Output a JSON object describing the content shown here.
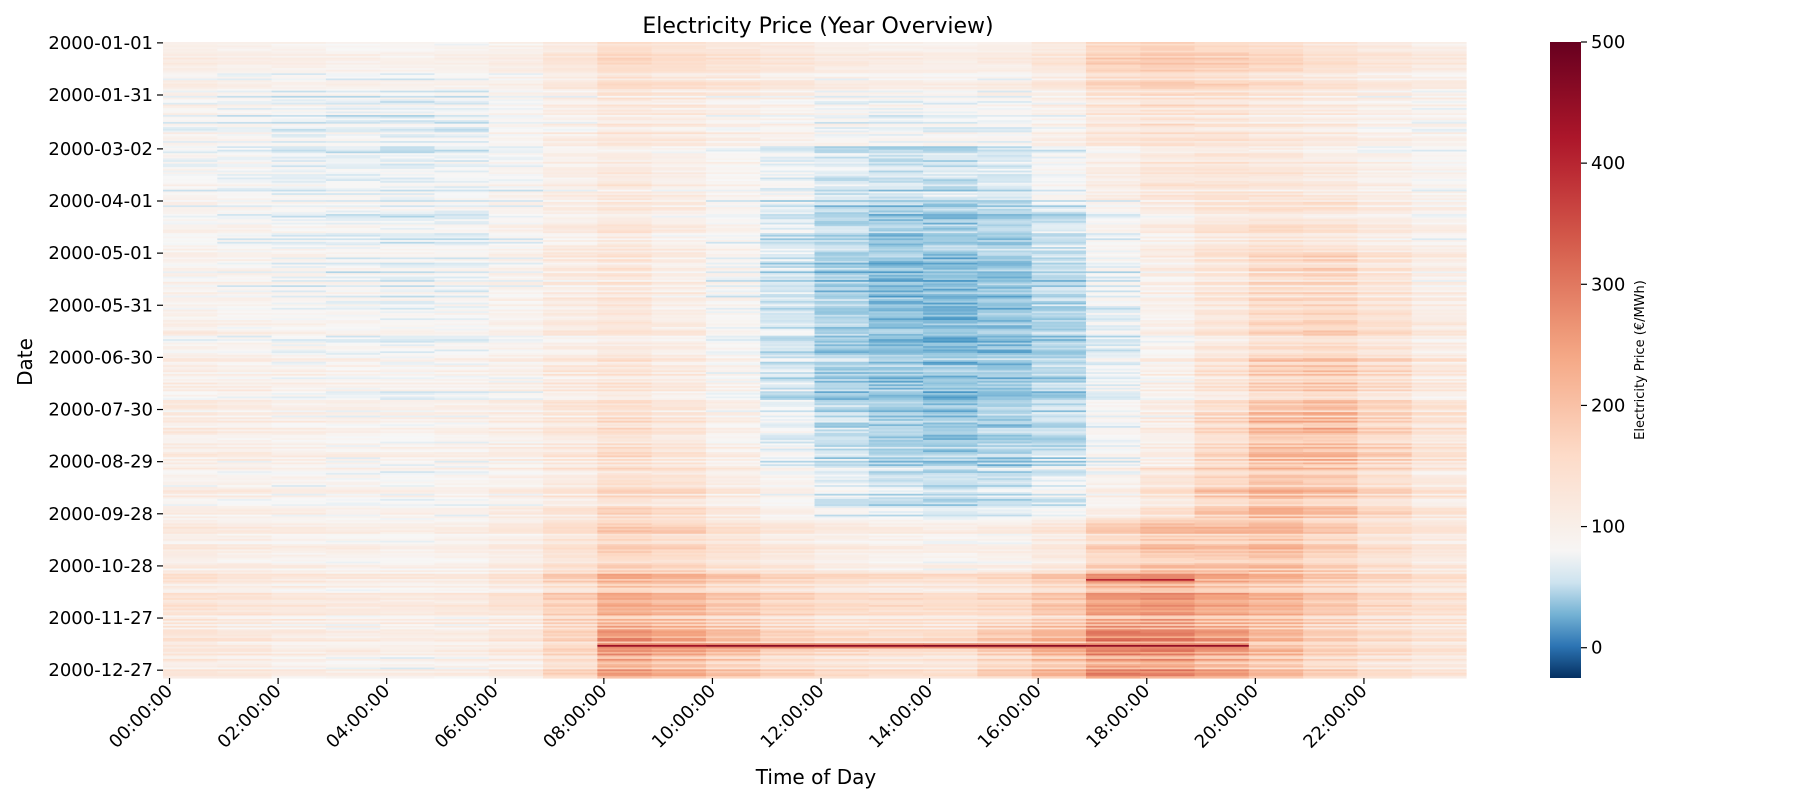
{
  "chart_data": {
    "type": "heatmap",
    "title": "Electricity Price (Year Overview)",
    "xlabel": "Time of Day",
    "ylabel": "Date",
    "colorbar_label": "Electricity Price (€/MWh)",
    "colorbar_ticks": [
      0,
      100,
      200,
      300,
      400,
      500
    ],
    "colorbar_range": [
      -25,
      500
    ],
    "colormap": "RdBu_r",
    "colormap_center": 75,
    "x_categories": [
      "00:00:00",
      "01:00:00",
      "02:00:00",
      "03:00:00",
      "04:00:00",
      "05:00:00",
      "06:00:00",
      "07:00:00",
      "08:00:00",
      "09:00:00",
      "10:00:00",
      "11:00:00",
      "12:00:00",
      "13:00:00",
      "14:00:00",
      "15:00:00",
      "16:00:00",
      "17:00:00",
      "18:00:00",
      "19:00:00",
      "20:00:00",
      "21:00:00",
      "22:00:00",
      "23:00:00"
    ],
    "x_tick_labels": [
      "00:00:00",
      "02:00:00",
      "04:00:00",
      "06:00:00",
      "08:00:00",
      "10:00:00",
      "12:00:00",
      "14:00:00",
      "16:00:00",
      "18:00:00",
      "20:00:00",
      "22:00:00"
    ],
    "y_tick_labels": [
      "2000-01-01",
      "2000-01-31",
      "2000-03-02",
      "2000-04-01",
      "2000-05-01",
      "2000-05-31",
      "2000-06-30",
      "2000-07-30",
      "2000-08-29",
      "2000-09-28",
      "2000-10-28",
      "2000-11-27",
      "2000-12-27"
    ],
    "y_range": [
      "2000-01-01",
      "2000-12-31"
    ],
    "approx_monthly_hourly_profile": [
      {
        "month": "2000-01",
        "values": [
          95,
          90,
          85,
          82,
          80,
          82,
          90,
          110,
          140,
          130,
          120,
          110,
          100,
          95,
          92,
          95,
          110,
          150,
          160,
          150,
          140,
          125,
          110,
          100
        ]
      },
      {
        "month": "2000-02",
        "values": [
          85,
          80,
          75,
          72,
          70,
          72,
          82,
          100,
          120,
          112,
          100,
          90,
          82,
          78,
          76,
          80,
          95,
          125,
          135,
          130,
          120,
          110,
          98,
          90
        ]
      },
      {
        "month": "2000-03",
        "values": [
          80,
          75,
          70,
          68,
          66,
          70,
          80,
          98,
          112,
          100,
          85,
          70,
          60,
          55,
          55,
          60,
          75,
          100,
          120,
          125,
          120,
          110,
          95,
          85
        ]
      },
      {
        "month": "2000-04",
        "values": [
          82,
          78,
          72,
          70,
          68,
          72,
          82,
          100,
          115,
          100,
          80,
          60,
          45,
          40,
          38,
          42,
          55,
          80,
          100,
          120,
          130,
          125,
          105,
          90
        ]
      },
      {
        "month": "2000-05",
        "values": [
          88,
          82,
          78,
          75,
          72,
          75,
          85,
          105,
          118,
          100,
          78,
          55,
          40,
          32,
          30,
          35,
          48,
          70,
          95,
          120,
          145,
          150,
          125,
          100
        ]
      },
      {
        "month": "2000-06",
        "values": [
          95,
          90,
          85,
          80,
          78,
          80,
          90,
          108,
          120,
          105,
          80,
          58,
          42,
          35,
          32,
          35,
          45,
          68,
          92,
          122,
          150,
          160,
          135,
          110
        ]
      },
      {
        "month": "2000-07",
        "values": [
          100,
          95,
          90,
          85,
          82,
          85,
          95,
          112,
          125,
          110,
          85,
          60,
          45,
          38,
          35,
          38,
          48,
          70,
          95,
          125,
          165,
          175,
          145,
          118
        ]
      },
      {
        "month": "2000-08",
        "values": [
          105,
          100,
          95,
          90,
          88,
          90,
          100,
          118,
          140,
          125,
          95,
          70,
          52,
          45,
          40,
          42,
          52,
          75,
          100,
          150,
          195,
          200,
          160,
          128
        ]
      },
      {
        "month": "2000-09",
        "values": [
          100,
          95,
          90,
          86,
          84,
          88,
          98,
          120,
          150,
          140,
          110,
          88,
          70,
          60,
          55,
          58,
          68,
          95,
          130,
          170,
          200,
          185,
          150,
          120
        ]
      },
      {
        "month": "2000-10",
        "values": [
          110,
          105,
          98,
          95,
          92,
          96,
          108,
          135,
          170,
          160,
          135,
          118,
          105,
          98,
          95,
          100,
          118,
          165,
          190,
          190,
          200,
          170,
          140,
          120
        ]
      },
      {
        "month": "2000-11",
        "values": [
          125,
          118,
          110,
          106,
          104,
          108,
          122,
          160,
          205,
          195,
          170,
          150,
          140,
          135,
          135,
          145,
          170,
          230,
          240,
          215,
          200,
          170,
          145,
          130
        ]
      },
      {
        "month": "2000-12",
        "values": [
          115,
          108,
          100,
          95,
          92,
          96,
          110,
          150,
          230,
          210,
          180,
          150,
          138,
          132,
          132,
          160,
          195,
          250,
          250,
          225,
          190,
          160,
          135,
          122
        ]
      }
    ],
    "notable_peaks": [
      {
        "date": "2000-11-05",
        "hours": "17:00-19:00",
        "value": 430
      },
      {
        "date": "2000-12-13",
        "hours": "08:00-20:00",
        "value": 470
      }
    ]
  }
}
